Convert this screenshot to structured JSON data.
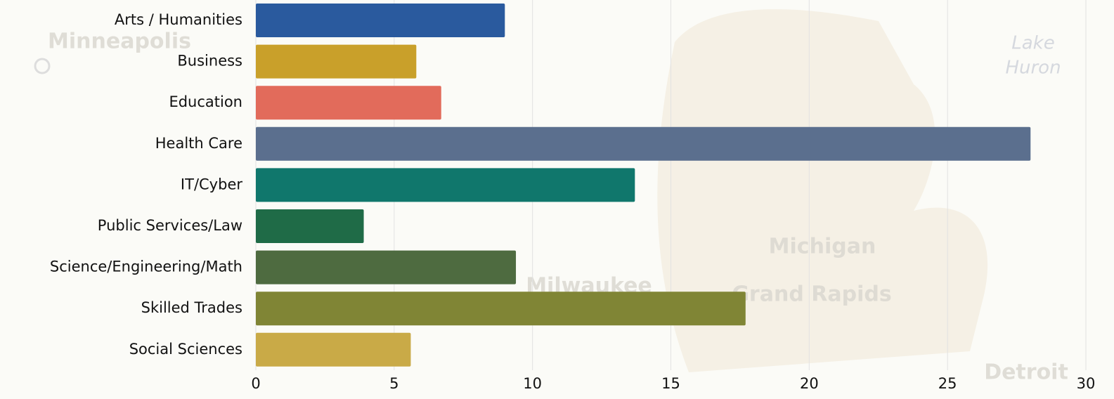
{
  "chart_data": {
    "type": "barh",
    "categories": [
      "Arts / Humanities",
      "Business",
      "Education",
      "Health Care",
      "IT/Cyber",
      "Public Services/Law",
      "Science/Engineering/Math",
      "Skilled Trades",
      "Social Sciences"
    ],
    "values": [
      9,
      5.8,
      6.7,
      28,
      13.7,
      3.9,
      9.4,
      17.7,
      5.6
    ],
    "colors": [
      "#2a5a9e",
      "#c9a02a",
      "#e26b5b",
      "#5b6f8e",
      "#10776c",
      "#1f6b47",
      "#4e6b40",
      "#808535",
      "#c9aa47"
    ],
    "xlim": [
      0,
      30
    ],
    "xticks": [
      0,
      5,
      10,
      15,
      20,
      25,
      30
    ],
    "grid": true
  },
  "map_labels": [
    "Minneapolis",
    "Lake",
    "Huron",
    "Michigan",
    "Milwaukee",
    "Grand Rapids",
    "Detroit"
  ]
}
